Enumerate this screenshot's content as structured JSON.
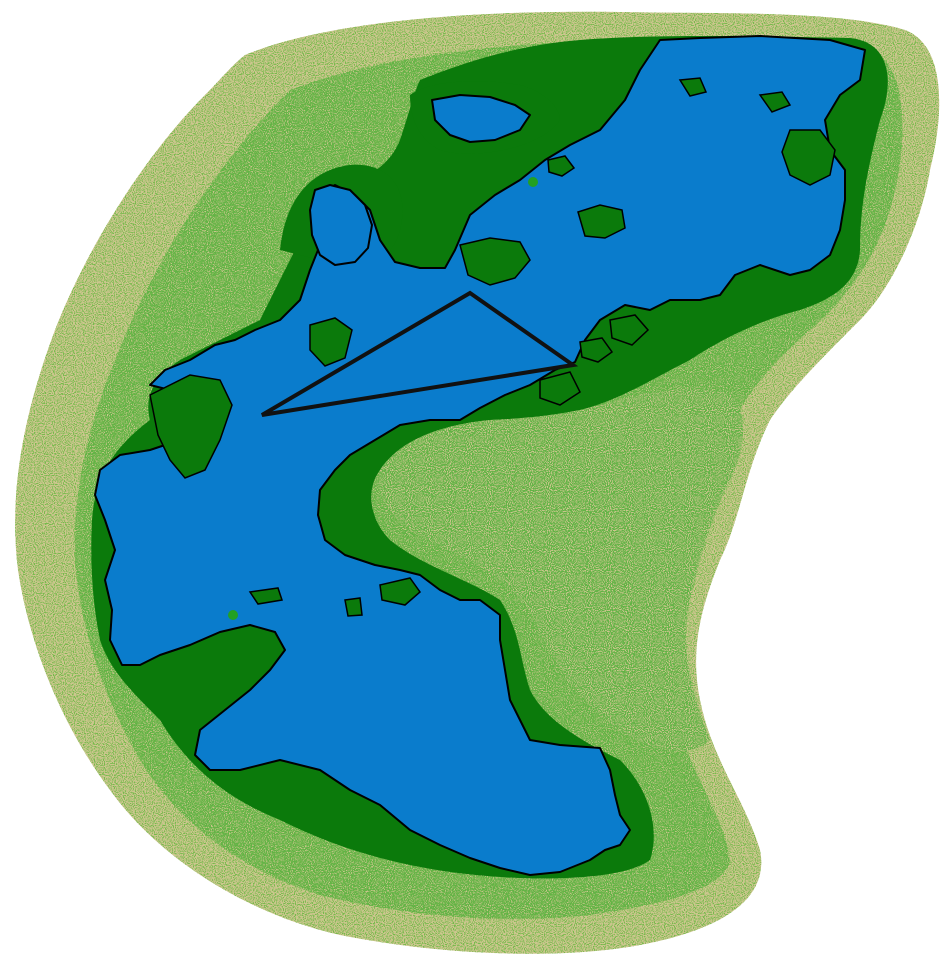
{
  "map": {
    "colors": {
      "background": "#ffffff",
      "sand": "#cdc68f",
      "speckle": "#2f7d12",
      "forest": "#0b7a0b",
      "water": "#0a7ccc",
      "coast": "#000000",
      "route": "#111111",
      "marker": "#22a022"
    },
    "layers": [
      "sand-terrain",
      "forest-terrain",
      "water",
      "route"
    ],
    "route": {
      "shape": "triangle",
      "stroke": "#111111"
    }
  }
}
